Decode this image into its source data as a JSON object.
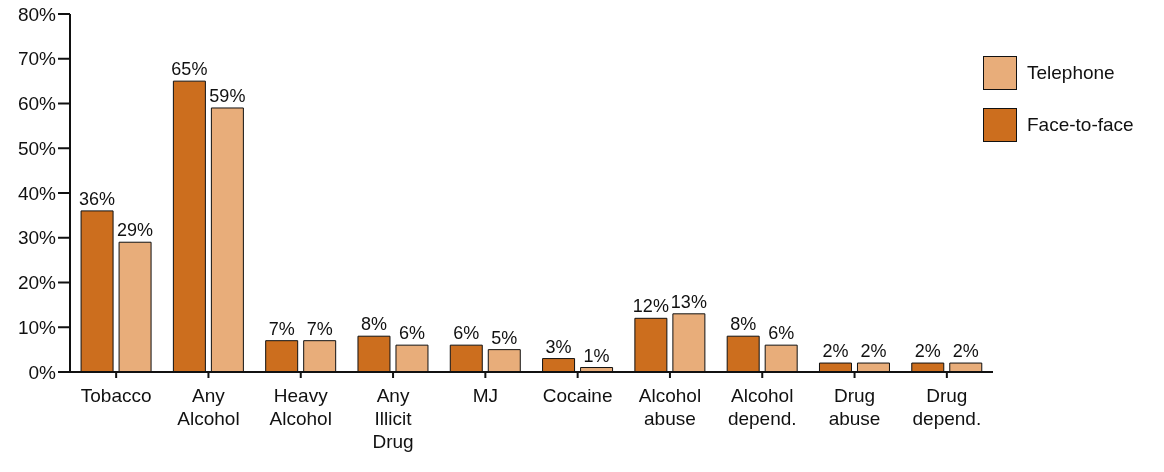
{
  "chart_data": {
    "type": "bar",
    "categories": [
      "Tobacco",
      "Any Alcohol",
      "Heavy Alcohol",
      "Any Illicit Drug",
      "MJ",
      "Cocaine",
      "Alcohol abuse",
      "Alcohol depend.",
      "Drug abuse",
      "Drug depend."
    ],
    "series": [
      {
        "name": "Face-to-face",
        "color": "#cc6e1e",
        "values": [
          36,
          65,
          7,
          8,
          6,
          3,
          12,
          8,
          2,
          2
        ],
        "value_labels": [
          "36%",
          "65%",
          "7%",
          "8%",
          "6%",
          "3%",
          "12%",
          "8%",
          "2%",
          "2%"
        ]
      },
      {
        "name": "Telephone",
        "color": "#e8ad7a",
        "values": [
          29,
          59,
          7,
          6,
          5,
          1,
          13,
          6,
          2,
          2
        ],
        "value_labels": [
          "29%",
          "59%",
          "7%",
          "6%",
          "5%",
          "1%",
          "13%",
          "6%",
          "2%",
          "2%"
        ]
      }
    ],
    "ylim": [
      0,
      80
    ],
    "yticks": [
      {
        "value": 0,
        "label": "0%"
      },
      {
        "value": 10,
        "label": "10%"
      },
      {
        "value": 20,
        "label": "20%"
      },
      {
        "value": 30,
        "label": "30%"
      },
      {
        "value": 40,
        "label": "40%"
      },
      {
        "value": 50,
        "label": "50%"
      },
      {
        "value": 60,
        "label": "60%"
      },
      {
        "value": 70,
        "label": "70%"
      },
      {
        "value": 80,
        "label": "80%"
      }
    ],
    "grid": false,
    "legend": "right"
  }
}
